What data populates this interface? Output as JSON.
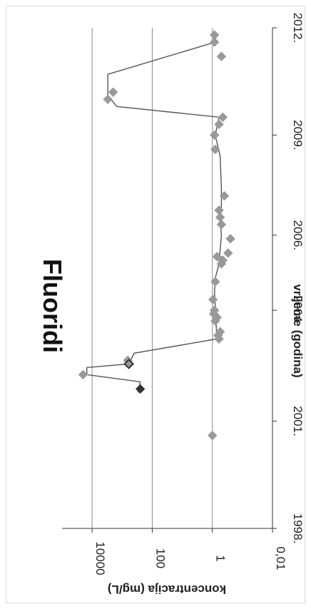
{
  "chart_data": {
    "type": "scatter",
    "title": "Fluoridi",
    "xlabel": "vrijeme (godina)",
    "ylabel": "koncentracija (mg/L)",
    "x_scale": "linear",
    "y_scale": "log",
    "xlim": [
      1998,
      2012
    ],
    "ylim": [
      0.01,
      100000
    ],
    "x_ticks": [
      "1998.",
      "2001.",
      "2004.",
      "2006.",
      "2009.",
      "2012."
    ],
    "y_ticks": [
      "0,01",
      "1",
      "100",
      "10000"
    ],
    "grid": "y-major",
    "series": [
      {
        "marker": "diamond",
        "color": "#999999",
        "points": [
          [
            2000.6,
            1.0
          ],
          [
            2002.3,
            20000
          ],
          [
            2002.6,
            600
          ],
          [
            2002.7,
            650
          ],
          [
            2003.3,
            0.6
          ],
          [
            2003.4,
            0.65
          ],
          [
            2003.5,
            0.55
          ],
          [
            2003.8,
            0.8
          ],
          [
            2003.9,
            0.7
          ],
          [
            2004.0,
            0.9
          ],
          [
            2004.1,
            0.85
          ],
          [
            2004.4,
            0.95
          ],
          [
            2004.9,
            0.8
          ],
          [
            2005.4,
            0.5
          ],
          [
            2005.5,
            0.45
          ],
          [
            2005.6,
            0.7
          ],
          [
            2005.7,
            0.3
          ],
          [
            2006.1,
            0.25
          ],
          [
            2006.5,
            0.5
          ],
          [
            2006.7,
            0.55
          ],
          [
            2006.9,
            0.6
          ],
          [
            2007.3,
            0.4
          ],
          [
            2008.6,
            0.8
          ],
          [
            2009.0,
            0.85
          ],
          [
            2009.3,
            0.6
          ],
          [
            2009.5,
            0.45
          ],
          [
            2010.0,
            3000
          ],
          [
            2010.2,
            2000
          ],
          [
            2011.2,
            0.5
          ],
          [
            2011.6,
            0.85
          ],
          [
            2011.8,
            0.85
          ]
        ]
      },
      {
        "marker": "diamond-filled",
        "color": "#333333",
        "points": [
          [
            2001.9,
            250
          ]
        ]
      },
      {
        "marker": "diamond-open",
        "color": "#333333",
        "points": [
          [
            2002.6,
            600
          ]
        ]
      }
    ],
    "trend_line": {
      "color": "#555555",
      "points": [
        [
          2001.8,
          300
        ],
        [
          2002.1,
          250
        ],
        [
          2002.3,
          15000
        ],
        [
          2002.5,
          15000
        ],
        [
          2002.6,
          600
        ],
        [
          2002.9,
          400
        ],
        [
          2003.3,
          0.7
        ],
        [
          2003.7,
          0.75
        ],
        [
          2004.2,
          0.8
        ],
        [
          2004.6,
          0.85
        ],
        [
          2005.0,
          0.8
        ],
        [
          2005.4,
          0.6
        ],
        [
          2005.8,
          0.55
        ],
        [
          2006.2,
          0.5
        ],
        [
          2006.6,
          0.55
        ],
        [
          2007.0,
          0.5
        ],
        [
          2007.5,
          0.5
        ],
        [
          2008.4,
          0.55
        ],
        [
          2009.0,
          0.8
        ],
        [
          2009.5,
          0.6
        ],
        [
          2009.8,
          1500
        ],
        [
          2010.1,
          3000
        ],
        [
          2010.7,
          3000
        ],
        [
          2011.6,
          0.8
        ]
      ]
    }
  }
}
